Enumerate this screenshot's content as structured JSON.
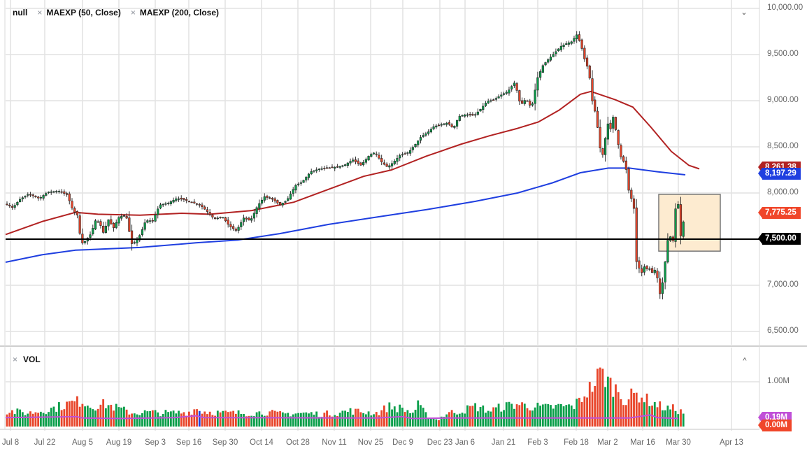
{
  "legend": {
    "series_name": "null",
    "indicators": [
      {
        "label": "MAEXP (50, Close)",
        "color": "#b22222"
      },
      {
        "label": "MAEXP (200, Close)",
        "color": "#1f3fe0"
      }
    ],
    "remove_icon": "×",
    "collapse_icon": "⌄"
  },
  "volume_pane": {
    "label": "VOL",
    "remove_icon": "×",
    "expand_icon": "^"
  },
  "price_axis": {
    "ticks": [
      "10,000.00",
      "9,500.00",
      "9,000.00",
      "8,500.00",
      "8,000.00",
      "7,500.00",
      "7,000.00",
      "6,500.00"
    ]
  },
  "volume_axis": {
    "ticks": [
      "1.00M"
    ]
  },
  "price_tags": [
    {
      "name": "ma50-tag",
      "label": "8,261.38",
      "color": "#b22222"
    },
    {
      "name": "ma200-tag",
      "label": "8,197.29",
      "color": "#1f3fe0"
    },
    {
      "name": "last-price-tag",
      "label": "7,775.25",
      "color": "#f0462a"
    },
    {
      "name": "horizontal-line-tag",
      "label": "7,500.00",
      "color": "#000000"
    }
  ],
  "volume_tags": [
    {
      "name": "vol-ma-tag",
      "label": "0.19M",
      "color": "#c050d8"
    },
    {
      "name": "vol-last-tag",
      "label": "0.00M",
      "color": "#f0462a"
    }
  ],
  "date_axis": {
    "labels": [
      "Jul 8",
      "Jul 22",
      "Aug 5",
      "Aug 19",
      "Sep 3",
      "Sep 16",
      "Sep 30",
      "Oct 14",
      "Oct 28",
      "Nov 11",
      "Nov 25",
      "Dec 9",
      "Dec 23",
      "Jan 6",
      "Jan 21",
      "Feb 3",
      "Feb 18",
      "Mar 2",
      "Mar 16",
      "Mar 30",
      "Apr 13"
    ]
  },
  "annotations": {
    "horizontal_line": 7500,
    "rectangle": {
      "x_from": "Mar 24",
      "x_to": "Apr 3",
      "y_from": 7370,
      "y_to": 7985,
      "fill": "#fde8c8",
      "stroke": "#777777"
    }
  },
  "colors": {
    "up": "#0a9e4a",
    "down": "#e8452a",
    "ma50": "#b22222",
    "ma200": "#1f3fe0",
    "vol_ma": "#c050d8",
    "grid": "#e2e2e2"
  },
  "chart_data": {
    "type": "candlestick",
    "title": "",
    "instrument": "null",
    "x_range": [
      "Jul 8",
      "Apr 13"
    ],
    "ylim": [
      6400,
      10000
    ],
    "y_ticks": [
      6500,
      7000,
      7500,
      8000,
      8500,
      9000,
      9500,
      10000
    ],
    "grid": true,
    "last_close": 7775.25,
    "series": [
      {
        "name": "MAEXP (50, Close)",
        "type": "line",
        "last": 8261.38,
        "points": [
          [
            8,
            7550
          ],
          [
            60,
            7690
          ],
          [
            108,
            7790
          ],
          [
            140,
            7770
          ],
          [
            200,
            7760
          ],
          [
            260,
            7780
          ],
          [
            300,
            7770
          ],
          [
            360,
            7810
          ],
          [
            420,
            7900
          ],
          [
            470,
            8040
          ],
          [
            520,
            8180
          ],
          [
            560,
            8250
          ],
          [
            610,
            8400
          ],
          [
            660,
            8530
          ],
          [
            700,
            8620
          ],
          [
            740,
            8700
          ],
          [
            770,
            8770
          ],
          [
            800,
            8900
          ],
          [
            830,
            9070
          ],
          [
            845,
            9100
          ],
          [
            880,
            9010
          ],
          [
            905,
            8930
          ],
          [
            930,
            8720
          ],
          [
            960,
            8450
          ],
          [
            985,
            8300
          ],
          [
            1000,
            8261
          ]
        ]
      },
      {
        "name": "MAEXP (200, Close)",
        "type": "line",
        "last": 8197.29,
        "points": [
          [
            8,
            7250
          ],
          [
            60,
            7330
          ],
          [
            108,
            7380
          ],
          [
            200,
            7410
          ],
          [
            280,
            7460
          ],
          [
            340,
            7490
          ],
          [
            400,
            7560
          ],
          [
            470,
            7660
          ],
          [
            540,
            7740
          ],
          [
            610,
            7820
          ],
          [
            680,
            7910
          ],
          [
            740,
            8000
          ],
          [
            790,
            8110
          ],
          [
            830,
            8220
          ],
          [
            870,
            8270
          ],
          [
            900,
            8270
          ],
          [
            940,
            8230
          ],
          [
            980,
            8197
          ]
        ]
      },
      {
        "name": "VOL",
        "type": "bar",
        "ylim": [
          0,
          1.35
        ],
        "unit": "M",
        "last": 0.0,
        "ma_last": 0.19
      }
    ],
    "ohlc_summary": {
      "jul_range": [
        7850,
        8030
      ],
      "aug_low": 7230,
      "feb_high": 9760,
      "mar_low": 6620,
      "last": 7775.25
    }
  }
}
